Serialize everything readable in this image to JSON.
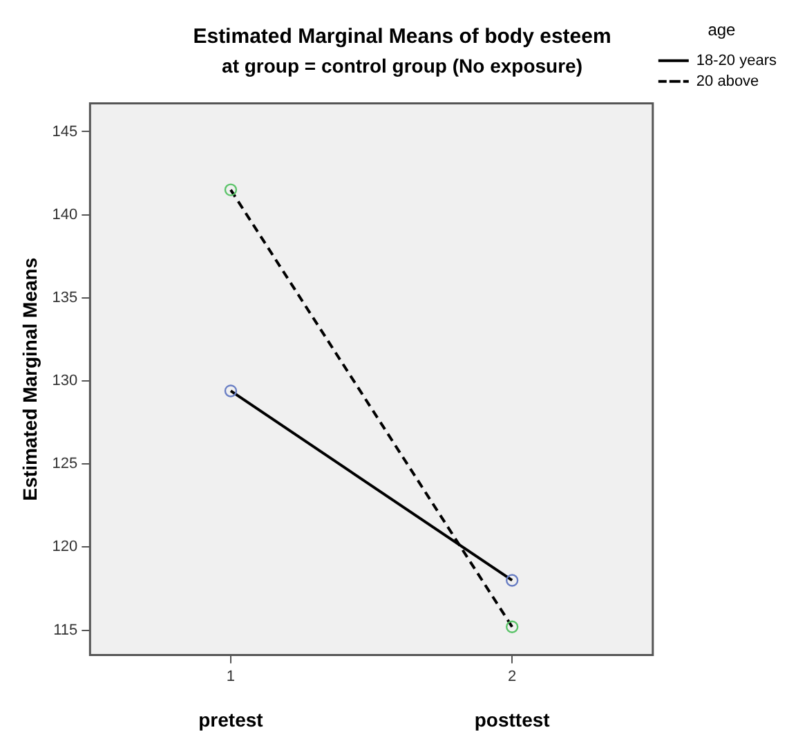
{
  "chart_data": {
    "type": "line",
    "title": "Estimated Marginal Means of body esteem",
    "subtitle": "at group = control group (No exposure)",
    "ylabel": "Estimated Marginal Means",
    "legend_title": "age",
    "categories": [
      "1",
      "2"
    ],
    "series": [
      {
        "name": "18-20 years",
        "color": "#000000",
        "colors": [
          "#6a7fc4",
          "#6a7fc4"
        ],
        "line_style": "solid",
        "values": [
          129.4,
          118.0
        ]
      },
      {
        "name": "20 above",
        "color": "#000000",
        "colors": [
          "#5cc46a",
          "#5cc46a"
        ],
        "line_style": "dashed",
        "values": [
          141.5,
          115.2
        ]
      }
    ],
    "ylim": [
      113.5,
      146.7
    ],
    "yticks": [
      115,
      120,
      125,
      130,
      135,
      140,
      145
    ],
    "grid": false,
    "legend": "top right",
    "marker": "circle",
    "annotations": [
      "pretest",
      "posttest"
    ]
  }
}
